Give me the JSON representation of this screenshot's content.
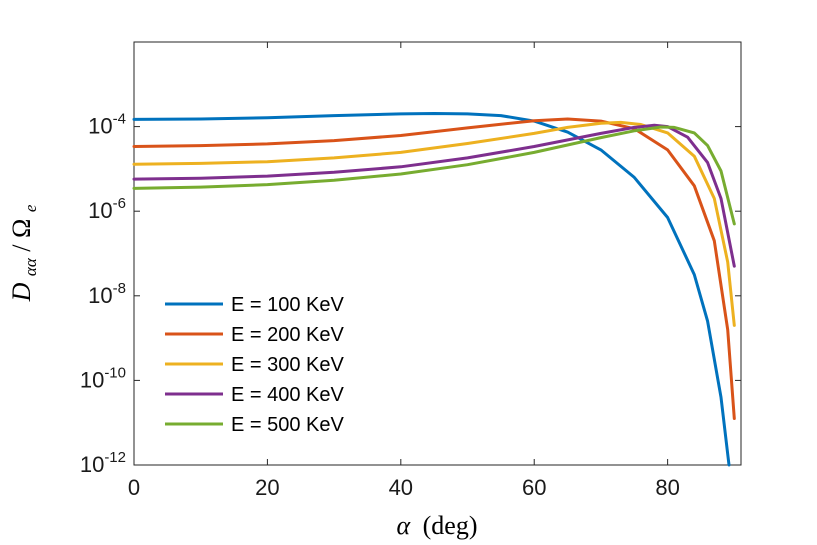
{
  "chart_data": {
    "type": "line",
    "title": "",
    "xlabel_symbol": "α",
    "xlabel_unit": "(deg)",
    "ylabel_base": "D",
    "ylabel_sub": "αα",
    "ylabel_sep": "/",
    "ylabel_denom": "Ω",
    "ylabel_denom_sub": "e",
    "xlim": [
      0,
      91
    ],
    "ylim_log10": [
      -12,
      -2
    ],
    "y_scale": "log",
    "x_ticks": [
      0,
      20,
      40,
      60,
      80
    ],
    "x_tick_labels": [
      "0",
      "20",
      "40",
      "60",
      "80"
    ],
    "y_ticks": [
      {
        "exp": -12,
        "base": "10",
        "sup": "-12"
      },
      {
        "exp": -10,
        "base": "10",
        "sup": "-10"
      },
      {
        "exp": -8,
        "base": "10",
        "sup": "-8"
      },
      {
        "exp": -6,
        "base": "10",
        "sup": "-6"
      },
      {
        "exp": -4,
        "base": "10",
        "sup": "-4"
      }
    ],
    "grid": false,
    "legend_position": "lower-left",
    "series": [
      {
        "name": "E = 100 KeV",
        "color": "#0072BD",
        "points": [
          [
            0,
            -3.83
          ],
          [
            10,
            -3.82
          ],
          [
            20,
            -3.79
          ],
          [
            30,
            -3.74
          ],
          [
            40,
            -3.7
          ],
          [
            45,
            -3.69
          ],
          [
            50,
            -3.7
          ],
          [
            55,
            -3.74
          ],
          [
            60,
            -3.87
          ],
          [
            65,
            -4.13
          ],
          [
            70,
            -4.55
          ],
          [
            75,
            -5.2
          ],
          [
            80,
            -6.15
          ],
          [
            84,
            -7.5
          ],
          [
            86,
            -8.6
          ],
          [
            88,
            -10.4
          ],
          [
            89.2,
            -12
          ]
        ]
      },
      {
        "name": "E = 200 KeV",
        "color": "#D95319",
        "points": [
          [
            0,
            -4.47
          ],
          [
            10,
            -4.45
          ],
          [
            20,
            -4.41
          ],
          [
            30,
            -4.33
          ],
          [
            40,
            -4.21
          ],
          [
            50,
            -4.03
          ],
          [
            60,
            -3.86
          ],
          [
            65,
            -3.82
          ],
          [
            70,
            -3.87
          ],
          [
            75,
            -4.05
          ],
          [
            80,
            -4.55
          ],
          [
            84,
            -5.4
          ],
          [
            87,
            -6.7
          ],
          [
            89,
            -8.8
          ],
          [
            90,
            -10.9
          ]
        ]
      },
      {
        "name": "E = 300 KeV",
        "color": "#EDB120",
        "points": [
          [
            0,
            -4.89
          ],
          [
            10,
            -4.87
          ],
          [
            20,
            -4.83
          ],
          [
            30,
            -4.74
          ],
          [
            40,
            -4.61
          ],
          [
            50,
            -4.4
          ],
          [
            60,
            -4.16
          ],
          [
            65,
            -4.02
          ],
          [
            70,
            -3.92
          ],
          [
            73,
            -3.9
          ],
          [
            76,
            -3.95
          ],
          [
            80,
            -4.15
          ],
          [
            84,
            -4.7
          ],
          [
            87,
            -5.7
          ],
          [
            89,
            -7.2
          ],
          [
            90,
            -8.7
          ]
        ]
      },
      {
        "name": "E = 400 KeV",
        "color": "#7E2F8E",
        "points": [
          [
            0,
            -5.24
          ],
          [
            10,
            -5.22
          ],
          [
            20,
            -5.17
          ],
          [
            30,
            -5.08
          ],
          [
            40,
            -4.95
          ],
          [
            50,
            -4.74
          ],
          [
            60,
            -4.47
          ],
          [
            70,
            -4.16
          ],
          [
            75,
            -4.02
          ],
          [
            78,
            -3.97
          ],
          [
            80,
            -4.0
          ],
          [
            83,
            -4.25
          ],
          [
            86,
            -4.85
          ],
          [
            88,
            -5.7
          ],
          [
            90,
            -7.3
          ]
        ]
      },
      {
        "name": "E = 500 KeV",
        "color": "#77AC30",
        "points": [
          [
            0,
            -5.46
          ],
          [
            10,
            -5.43
          ],
          [
            20,
            -5.37
          ],
          [
            30,
            -5.27
          ],
          [
            40,
            -5.12
          ],
          [
            50,
            -4.9
          ],
          [
            60,
            -4.61
          ],
          [
            70,
            -4.26
          ],
          [
            75,
            -4.1
          ],
          [
            79,
            -4.01
          ],
          [
            81,
            -4.02
          ],
          [
            84,
            -4.15
          ],
          [
            86,
            -4.45
          ],
          [
            88,
            -5.05
          ],
          [
            90,
            -6.3
          ]
        ]
      }
    ]
  }
}
